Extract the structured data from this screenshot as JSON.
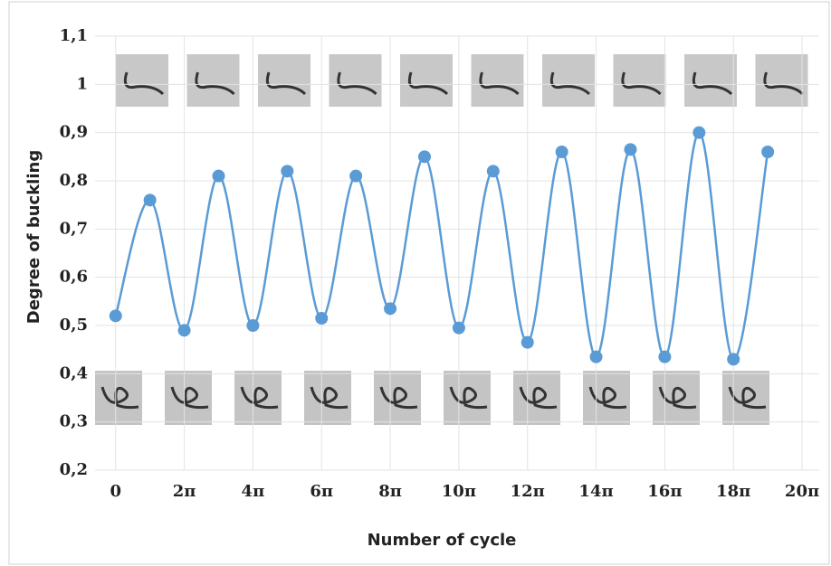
{
  "chart_data": {
    "type": "line",
    "xlabel": "Number of cycle",
    "ylabel": "Degree of buckling",
    "x": [
      0,
      1,
      2,
      3,
      4,
      5,
      6,
      7,
      8,
      9,
      10,
      11,
      12,
      13,
      14,
      15,
      16,
      17,
      18,
      19
    ],
    "series": [
      {
        "name": "Degree of buckling",
        "color": "#5b9bd5",
        "values": [
          0.52,
          0.76,
          0.49,
          0.81,
          0.5,
          0.82,
          0.515,
          0.81,
          0.535,
          0.85,
          0.495,
          0.82,
          0.465,
          0.86,
          0.435,
          0.865,
          0.435,
          0.9,
          0.43,
          0.86
        ]
      }
    ],
    "xlim": [
      -0.6,
      20.5
    ],
    "xticks": [
      0,
      {
        "value": 2,
        "label": "2π"
      },
      {
        "value": 4,
        "label": "4π"
      },
      {
        "value": 6,
        "label": "6π"
      },
      {
        "value": 8,
        "label": "8π"
      },
      {
        "value": 10,
        "label": "10π"
      },
      {
        "value": 12,
        "label": "12π"
      },
      {
        "value": 14,
        "label": "14π"
      },
      {
        "value": 16,
        "label": "16π"
      },
      {
        "value": 18,
        "label": "18π"
      },
      {
        "value": 20,
        "label": "20π"
      }
    ],
    "ylim": [
      0.2,
      1.1
    ],
    "yticks": [
      {
        "value": 0.2,
        "label": "0,2"
      },
      {
        "value": 0.3,
        "label": "0,3"
      },
      {
        "value": 0.4,
        "label": "0,4"
      },
      {
        "value": 0.5,
        "label": "0,5"
      },
      {
        "value": 0.6,
        "label": "0,6"
      },
      {
        "value": 0.7,
        "label": "0,7"
      },
      {
        "value": 0.8,
        "label": "0,8"
      },
      {
        "value": 0.9,
        "label": "0,9"
      },
      {
        "value": 1,
        "label": "1"
      },
      {
        "value": 1.1,
        "label": "1,1"
      }
    ],
    "grid": true
  }
}
